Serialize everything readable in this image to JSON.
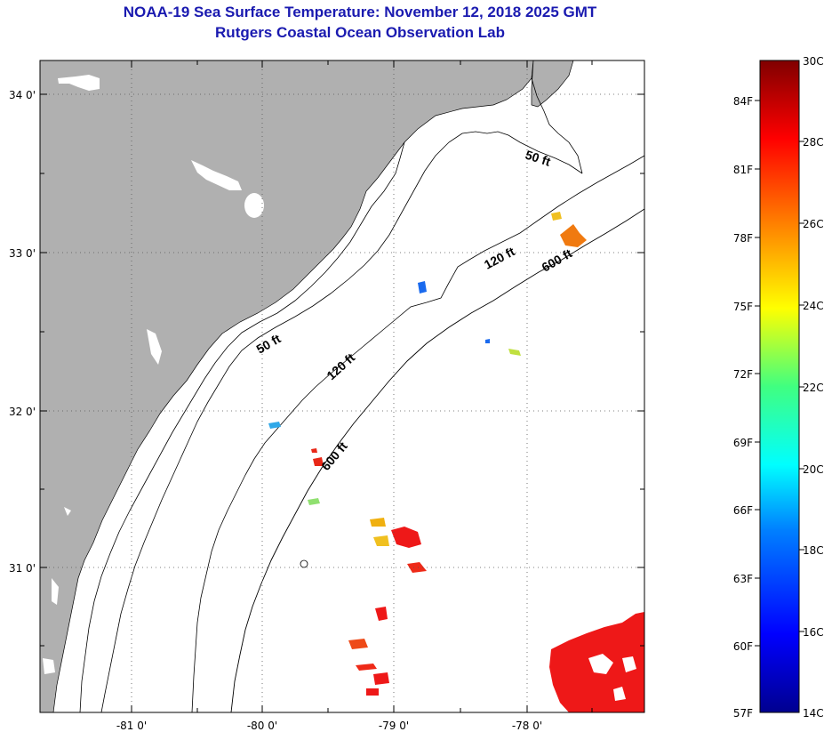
{
  "header": {
    "title_line1": "NOAA-19 Sea Surface Temperature:  November 12, 2018 2025 GMT",
    "title_line2": "Rutgers Coastal Ocean Observation Lab"
  },
  "map": {
    "lat_labels": [
      "34 0'",
      "33 0'",
      "32 0'",
      "31 0'"
    ],
    "lon_labels": [
      "-81 0'",
      "-80 0'",
      "-79 0'",
      "-78 0'"
    ],
    "isobaths": {
      "fifty_a": "50 ft",
      "fifty_b": "50 ft",
      "one_twenty_a": "120 ft",
      "one_twenty_b": "120 ft",
      "six_hundred_a": "600 ft",
      "six_hundred_b": "600 ft"
    },
    "colors": {
      "land": "#b0b0b0",
      "ocean": "#ffffff",
      "title": "#1a1ab0"
    }
  },
  "colorbar": {
    "celsius_labels": [
      "30C",
      "28C",
      "26C",
      "24C",
      "22C",
      "20C",
      "18C",
      "16C",
      "14C"
    ],
    "fahrenheit_labels": [
      "84F",
      "81F",
      "78F",
      "75F",
      "72F",
      "69F",
      "66F",
      "63F",
      "60F",
      "57F"
    ]
  }
}
